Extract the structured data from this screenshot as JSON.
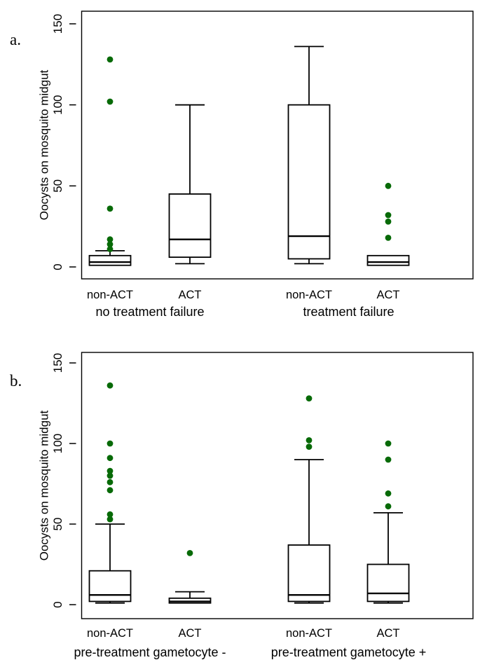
{
  "figure": {
    "background": "#ffffff",
    "line_color": "#000000",
    "outlier_dot_color": "#076a07"
  },
  "chart_data": [
    {
      "type": "boxplot",
      "panel_label": "a.",
      "ylabel": "Oocysts on mosquito midgut",
      "yticks": [
        0,
        50,
        100,
        150
      ],
      "ylim": [
        -8,
        158
      ],
      "grid": false,
      "legend": "none",
      "categories": [
        "non-ACT",
        "ACT",
        "non-ACT",
        "ACT"
      ],
      "group_labels": [
        "no treatment failure",
        "treatment failure"
      ],
      "series": [
        {
          "category": "non-ACT",
          "group": "no treatment failure",
          "whisker_low": 1,
          "q1": 1,
          "median": 3,
          "q3": 7,
          "whisker_high": 10,
          "outliers": [
            11,
            14,
            17,
            36,
            102,
            128
          ]
        },
        {
          "category": "ACT",
          "group": "no treatment failure",
          "whisker_low": 2,
          "q1": 6,
          "median": 17,
          "q3": 45,
          "whisker_high": 100,
          "outliers": []
        },
        {
          "category": "non-ACT",
          "group": "treatment failure",
          "whisker_low": 2,
          "q1": 5,
          "median": 19,
          "q3": 100,
          "whisker_high": 136,
          "outliers": []
        },
        {
          "category": "ACT",
          "group": "treatment failure",
          "whisker_low": 1,
          "q1": 1,
          "median": 3,
          "q3": 7,
          "whisker_high": 7,
          "outliers": [
            18,
            28,
            32,
            50
          ]
        }
      ]
    },
    {
      "type": "boxplot",
      "panel_label": "b.",
      "ylabel": "Oocysts on mosquito midgut",
      "yticks": [
        0,
        50,
        100,
        150
      ],
      "ylim": [
        -9,
        157
      ],
      "grid": false,
      "legend": "none",
      "categories": [
        "non-ACT",
        "ACT",
        "non-ACT",
        "ACT"
      ],
      "group_labels": [
        "pre-treatment gametocyte -",
        "pre-treatment gametocyte +"
      ],
      "series": [
        {
          "category": "non-ACT",
          "group": "pre-treatment gametocyte -",
          "whisker_low": 1,
          "q1": 2,
          "median": 6,
          "q3": 21,
          "whisker_high": 50,
          "outliers": [
            53,
            56,
            71,
            76,
            80,
            83,
            91,
            100,
            136
          ]
        },
        {
          "category": "ACT",
          "group": "pre-treatment gametocyte -",
          "whisker_low": 1,
          "q1": 1,
          "median": 2,
          "q3": 4,
          "whisker_high": 8,
          "outliers": [
            32
          ]
        },
        {
          "category": "non-ACT",
          "group": "pre-treatment gametocyte +",
          "whisker_low": 1,
          "q1": 2,
          "median": 6,
          "q3": 37,
          "whisker_high": 90,
          "outliers": [
            98,
            102,
            128
          ]
        },
        {
          "category": "ACT",
          "group": "pre-treatment gametocyte +",
          "whisker_low": 1,
          "q1": 2,
          "median": 7,
          "q3": 25,
          "whisker_high": 57,
          "outliers": [
            61,
            69,
            90,
            100
          ]
        }
      ]
    }
  ]
}
